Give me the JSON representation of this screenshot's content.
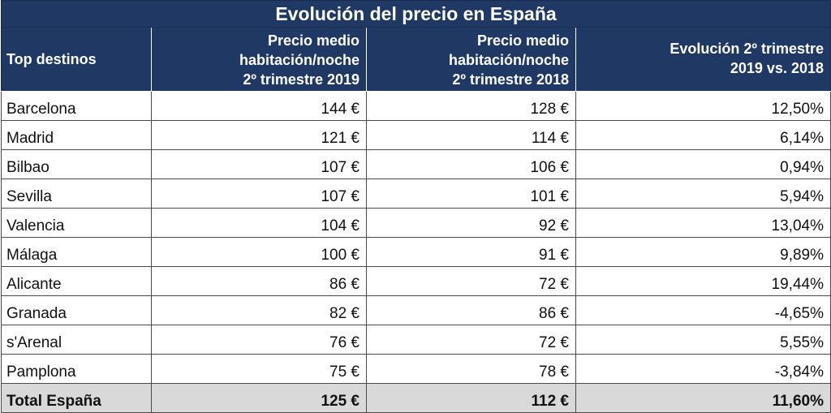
{
  "chart_data": {
    "type": "table",
    "title": "Evolución del precio en España",
    "columns": [
      "Top destinos",
      "Precio medio habitación/noche 2º trimestre 2019",
      "Precio medio habitación/noche 2º trimestre 2018",
      "Evolución 2º trimestre 2019 vs. 2018"
    ],
    "header_lines": {
      "col1": [
        "Top destinos"
      ],
      "col2": [
        "Precio medio",
        "habitación/noche",
        "2º trimestre 2019"
      ],
      "col3": [
        "Precio medio",
        "habitación/noche",
        "2º trimestre 2018"
      ],
      "col4": [
        "Evolución 2º trimestre",
        "2019 vs. 2018"
      ]
    },
    "rows": [
      {
        "destino": "Barcelona",
        "precio_2019": "144 €",
        "precio_2018": "128 €",
        "evolucion": "12,50%"
      },
      {
        "destino": "Madrid",
        "precio_2019": "121 €",
        "precio_2018": "114 €",
        "evolucion": "6,14%"
      },
      {
        "destino": "Bilbao",
        "precio_2019": "107 €",
        "precio_2018": "106 €",
        "evolucion": "0,94%"
      },
      {
        "destino": "Sevilla",
        "precio_2019": "107 €",
        "precio_2018": "101 €",
        "evolucion": "5,94%"
      },
      {
        "destino": "Valencia",
        "precio_2019": "104 €",
        "precio_2018": "92 €",
        "evolucion": "13,04%"
      },
      {
        "destino": "Málaga",
        "precio_2019": "100 €",
        "precio_2018": "91 €",
        "evolucion": "9,89%"
      },
      {
        "destino": "Alicante",
        "precio_2019": "86 €",
        "precio_2018": "72 €",
        "evolucion": "19,44%"
      },
      {
        "destino": "Granada",
        "precio_2019": "82 €",
        "precio_2018": "86 €",
        "evolucion": "-4,65%"
      },
      {
        "destino": "s'Arenal",
        "precio_2019": "76 €",
        "precio_2018": "72 €",
        "evolucion": "5,55%"
      },
      {
        "destino": "Pamplona",
        "precio_2019": "75 €",
        "precio_2018": "78 €",
        "evolucion": "-3,84%"
      }
    ],
    "total": {
      "destino": "Total España",
      "precio_2019": "125 €",
      "precio_2018": "112 €",
      "evolucion": "11,60%"
    }
  },
  "colors": {
    "header_bg": "#1f3864",
    "header_text": "#ffffff",
    "total_bg": "#d9d9d9",
    "border": "#4a4a4a"
  }
}
